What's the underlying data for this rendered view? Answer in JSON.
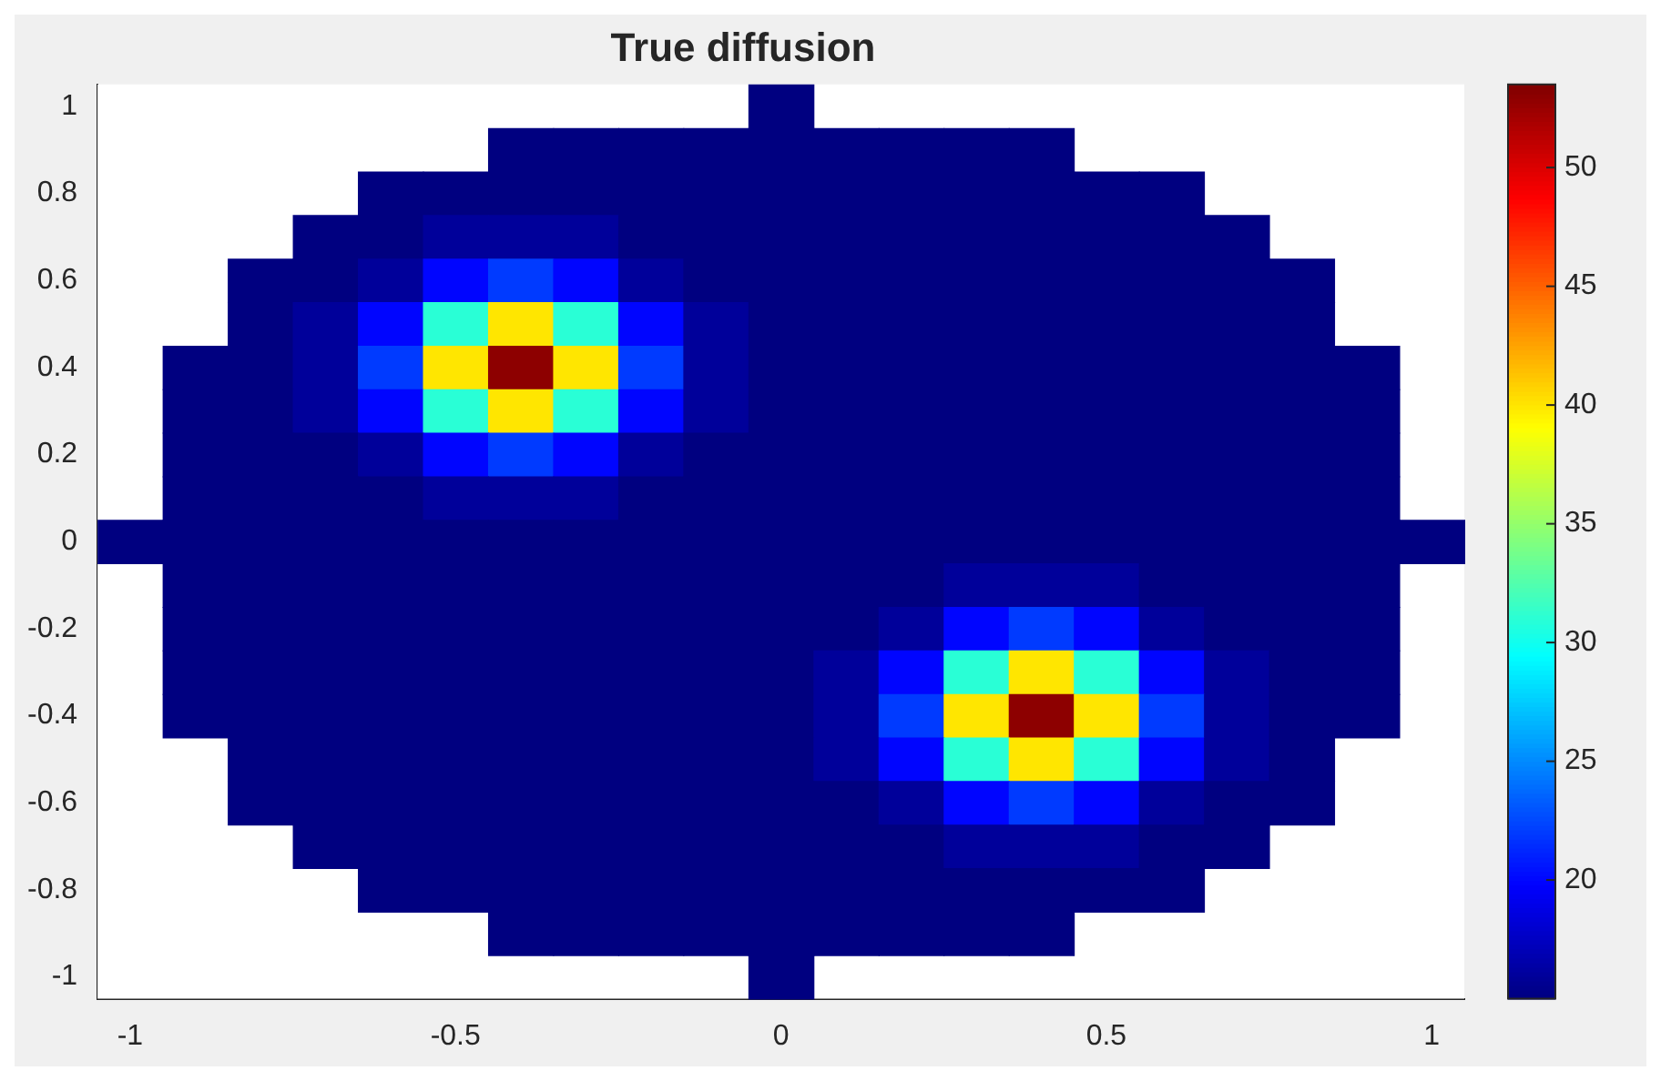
{
  "chart_data": {
    "type": "heatmap",
    "title": "True diffusion",
    "categories": [
      "-1",
      null,
      null,
      null,
      null,
      "-0.5",
      null,
      null,
      null,
      null,
      "0",
      null,
      null,
      null,
      null,
      "0.5",
      null,
      null,
      null,
      null,
      "1"
    ],
    "y_categories": [
      "1",
      null,
      "0.8",
      null,
      "0.6",
      null,
      "0.4",
      null,
      "0.2",
      null,
      "0",
      null,
      "-0.2",
      null,
      "-0.4",
      null,
      "-0.6",
      null,
      "-0.8",
      null,
      "-1"
    ],
    "cells": [
      [
        null,
        null,
        null,
        null,
        null,
        null,
        null,
        null,
        null,
        null,
        15,
        null,
        null,
        null,
        null,
        null,
        null,
        null,
        null,
        null,
        null
      ],
      [
        null,
        null,
        null,
        null,
        null,
        null,
        15,
        15,
        15,
        15,
        15,
        15,
        15,
        15,
        15,
        null,
        null,
        null,
        null,
        null,
        null
      ],
      [
        null,
        null,
        null,
        null,
        15,
        15,
        15,
        15,
        15,
        15,
        15,
        15,
        15,
        15,
        15,
        15,
        15,
        null,
        null,
        null,
        null
      ],
      [
        null,
        null,
        null,
        15,
        15,
        16,
        16,
        16,
        15,
        15,
        15,
        15,
        15,
        15,
        15,
        15,
        15,
        15,
        null,
        null,
        null
      ],
      [
        null,
        null,
        15,
        15,
        16,
        20,
        22,
        20,
        16,
        15,
        15,
        15,
        15,
        15,
        15,
        15,
        15,
        15,
        15,
        null,
        null
      ],
      [
        null,
        null,
        15,
        16,
        20,
        31,
        40,
        31,
        20,
        16,
        15,
        15,
        15,
        15,
        15,
        15,
        15,
        15,
        15,
        null,
        null
      ],
      [
        null,
        15,
        15,
        16,
        22,
        40,
        53,
        40,
        22,
        16,
        15,
        15,
        15,
        15,
        15,
        15,
        15,
        15,
        15,
        15,
        null
      ],
      [
        null,
        15,
        15,
        16,
        20,
        31,
        40,
        31,
        20,
        16,
        15,
        15,
        15,
        15,
        15,
        15,
        15,
        15,
        15,
        15,
        null
      ],
      [
        null,
        15,
        15,
        15,
        16,
        20,
        22,
        20,
        16,
        15,
        15,
        15,
        15,
        15,
        15,
        15,
        15,
        15,
        15,
        15,
        null
      ],
      [
        null,
        15,
        15,
        15,
        15,
        16,
        16,
        16,
        15,
        15,
        15,
        15,
        15,
        15,
        15,
        15,
        15,
        15,
        15,
        15,
        null
      ],
      [
        15,
        15,
        15,
        15,
        15,
        15,
        15,
        15,
        15,
        15,
        15,
        15,
        15,
        15,
        15,
        15,
        15,
        15,
        15,
        15,
        15
      ],
      [
        null,
        15,
        15,
        15,
        15,
        15,
        15,
        15,
        15,
        15,
        15,
        15,
        15,
        16,
        16,
        16,
        15,
        15,
        15,
        15,
        null
      ],
      [
        null,
        15,
        15,
        15,
        15,
        15,
        15,
        15,
        15,
        15,
        15,
        15,
        16,
        20,
        22,
        20,
        16,
        15,
        15,
        15,
        null
      ],
      [
        null,
        15,
        15,
        15,
        15,
        15,
        15,
        15,
        15,
        15,
        15,
        16,
        20,
        31,
        40,
        31,
        20,
        16,
        15,
        15,
        null
      ],
      [
        null,
        15,
        15,
        15,
        15,
        15,
        15,
        15,
        15,
        15,
        15,
        16,
        22,
        40,
        53,
        40,
        22,
        16,
        15,
        15,
        null
      ],
      [
        null,
        null,
        15,
        15,
        15,
        15,
        15,
        15,
        15,
        15,
        15,
        16,
        20,
        31,
        40,
        31,
        20,
        16,
        15,
        null,
        null
      ],
      [
        null,
        null,
        15,
        15,
        15,
        15,
        15,
        15,
        15,
        15,
        15,
        15,
        16,
        20,
        22,
        20,
        16,
        15,
        15,
        null,
        null
      ],
      [
        null,
        null,
        null,
        15,
        15,
        15,
        15,
        15,
        15,
        15,
        15,
        15,
        15,
        16,
        16,
        16,
        15,
        15,
        null,
        null,
        null
      ],
      [
        null,
        null,
        null,
        null,
        15,
        15,
        15,
        15,
        15,
        15,
        15,
        15,
        15,
        15,
        15,
        15,
        15,
        null,
        null,
        null,
        null
      ],
      [
        null,
        null,
        null,
        null,
        null,
        null,
        15,
        15,
        15,
        15,
        15,
        15,
        15,
        15,
        15,
        null,
        null,
        null,
        null,
        null,
        null
      ],
      [
        null,
        null,
        null,
        null,
        null,
        null,
        null,
        null,
        null,
        null,
        15,
        null,
        null,
        null,
        null,
        null,
        null,
        null,
        null,
        null,
        null
      ]
    ],
    "clim": [
      15,
      53.5
    ],
    "cticks": [
      20,
      25,
      30,
      35,
      40,
      45,
      50
    ]
  }
}
